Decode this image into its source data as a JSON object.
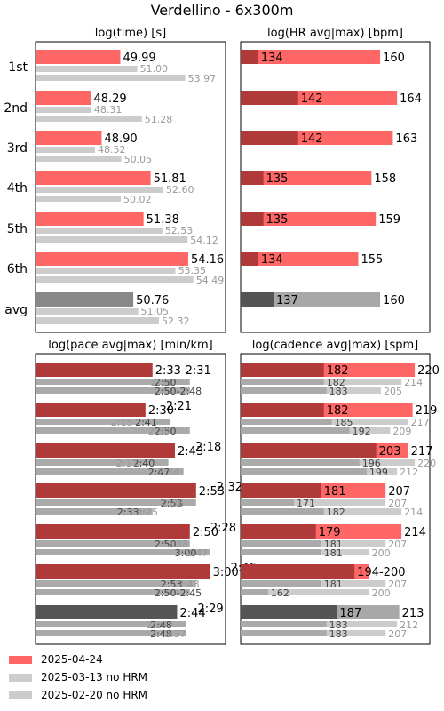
{
  "figure": {
    "title": "Verdellino - 6x300m",
    "row_labels": [
      "1st",
      "2nd",
      "3rd",
      "4th",
      "5th",
      "6th",
      "avg"
    ],
    "colors": {
      "primary": "#ff6666",
      "primary_dark": "#b03a3a",
      "secondary": "#cccccc",
      "secondary_dark": "#aaaaaa",
      "avg_primary": "#888888",
      "avg_dark": "#555555",
      "avg_light": "#a8a8a8",
      "muted_text": "#999999"
    }
  },
  "legend": {
    "items": [
      {
        "label": "2025-04-24",
        "color": "#ff6666"
      },
      {
        "label": "2025-03-13 no HRM",
        "color": "#cccccc"
      },
      {
        "label": "2025-02-20 no HRM",
        "color": "#cccccc"
      }
    ]
  },
  "chart_data": [
    {
      "id": "time",
      "type": "bar",
      "title": "log(time) [s]",
      "scale": "log",
      "orientation": "horizontal",
      "categories": [
        "1st",
        "2nd",
        "3rd",
        "4th",
        "5th",
        "6th",
        "avg"
      ],
      "series": [
        {
          "name": "2025-04-24",
          "values": [
            49.99,
            48.29,
            48.9,
            51.81,
            51.38,
            54.16,
            50.76
          ],
          "labels": [
            "49.99",
            "48.29",
            "48.90",
            "51.81",
            "51.38",
            "54.16",
            "50.76"
          ]
        },
        {
          "name": "2025-03-13 no HRM",
          "values": [
            51.0,
            48.31,
            48.52,
            52.6,
            52.53,
            53.35,
            51.05
          ],
          "labels": [
            "51.00",
            "48.31",
            "48.52",
            "52.60",
            "52.53",
            "53.35",
            "51.05"
          ]
        },
        {
          "name": "2025-02-20 no HRM",
          "values": [
            53.97,
            51.28,
            50.05,
            50.02,
            54.12,
            54.49,
            52.32
          ],
          "labels": [
            "53.97",
            "51.28",
            "50.05",
            "50.02",
            "54.12",
            "54.49",
            "52.32"
          ]
        }
      ]
    },
    {
      "id": "hr",
      "type": "bar",
      "title": "log(HR avg|max) [bpm]",
      "scale": "log",
      "orientation": "horizontal",
      "categories": [
        "1st",
        "2nd",
        "3rd",
        "4th",
        "5th",
        "6th",
        "avg"
      ],
      "series": [
        {
          "name": "2025-04-24",
          "avg": [
            134,
            142,
            142,
            135,
            135,
            134,
            137
          ],
          "max": [
            160,
            164,
            163,
            158,
            159,
            155,
            160
          ],
          "avg_labels": [
            "134",
            "142",
            "142",
            "135",
            "135",
            "134",
            "137"
          ],
          "max_labels": [
            "160",
            "164",
            "163",
            "158",
            "159",
            "155",
            "160"
          ]
        }
      ]
    },
    {
      "id": "pace",
      "type": "bar",
      "title": "log(pace avg|max) [min/km]",
      "scale": "log",
      "orientation": "horizontal",
      "categories": [
        "1st",
        "2nd",
        "3rd",
        "4th",
        "5th",
        "6th",
        "avg"
      ],
      "series": [
        {
          "name": "2025-04-24",
          "avg": [
            153,
            150,
            163,
            173,
            170,
            180,
            164
          ],
          "max": [
            151,
            141,
            138,
            152,
            148,
            166,
            149
          ],
          "labels": [
            "2:33-2:31",
            "2:30",
            "2:43",
            "2:53",
            "2:50",
            "3:00",
            "2:44"
          ],
          "max_labels": [
            "",
            "2:21",
            "2:18",
            "2:32",
            "2:28",
            "2:46",
            "2:29"
          ]
        },
        {
          "name": "2025-03-13 no HRM",
          "avg": [
            170,
            161,
            160,
            173,
            170,
            173,
            168
          ],
          "max": [
            151,
            135,
            137,
            156,
            158,
            163,
            149
          ],
          "labels": [
            "2:50",
            "2:41",
            "2:40",
            "2:53",
            "2:50",
            "2:53",
            "2:48"
          ],
          "max_labels": [
            "2:31",
            "2:15",
            "2:17",
            "2:36",
            "2:38",
            "2:43",
            "2:29"
          ]
        },
        {
          "name": "2025-02-20 no HRM",
          "avg": [
            170,
            170,
            167,
            153,
            180,
            170,
            168
          ],
          "max": [
            168,
            150,
            154,
            145,
            167,
            165,
            157
          ],
          "labels": [
            "2:50-2:48",
            "2:50",
            "2:47",
            "2:33",
            "3:00",
            "2:50-2:45",
            "2:48"
          ],
          "max_labels": [
            "",
            "2:30",
            "2:34",
            "2:25",
            "2:47",
            "",
            "2:37"
          ]
        }
      ]
    },
    {
      "id": "cadence",
      "type": "bar",
      "title": "log(cadence avg|max) [spm]",
      "scale": "log",
      "orientation": "horizontal",
      "categories": [
        "1st",
        "2nd",
        "3rd",
        "4th",
        "5th",
        "6th",
        "avg"
      ],
      "series": [
        {
          "name": "2025-04-24",
          "avg": [
            182,
            182,
            203,
            181,
            179,
            194,
            187
          ],
          "max": [
            220,
            219,
            217,
            207,
            214,
            200,
            213
          ],
          "labels": [
            "182",
            "182",
            "203",
            "181",
            "179",
            "194-200",
            "187"
          ],
          "max_labels": [
            "220",
            "219",
            "217",
            "207",
            "214",
            "",
            "213"
          ]
        },
        {
          "name": "2025-03-13 no HRM",
          "avg": [
            182,
            185,
            196,
            171,
            181,
            181,
            183
          ],
          "max": [
            214,
            217,
            220,
            207,
            207,
            207,
            212
          ],
          "labels": [
            "182",
            "185",
            "196",
            "171",
            "181",
            "181",
            "183"
          ],
          "max_labels": [
            "214",
            "217",
            "220",
            "207",
            "207",
            "207",
            "212"
          ]
        },
        {
          "name": "2025-02-20 no HRM",
          "avg": [
            183,
            192,
            199,
            182,
            181,
            162,
            183
          ],
          "max": [
            205,
            209,
            212,
            214,
            200,
            200,
            207
          ],
          "labels": [
            "183",
            "192",
            "199",
            "182",
            "181",
            "162",
            "183"
          ],
          "max_labels": [
            "205",
            "209",
            "212",
            "214",
            "200",
            "200",
            "207"
          ]
        }
      ]
    }
  ]
}
